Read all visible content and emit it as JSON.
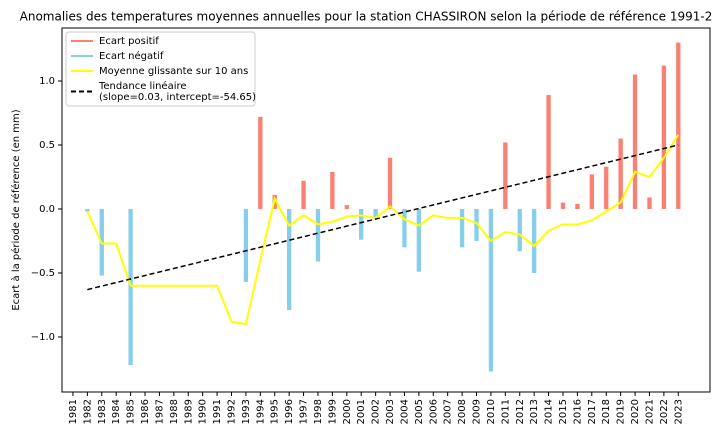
{
  "chart_data": {
    "type": "bar",
    "title": "Anomalies des temperatures moyennes annuelles pour la station CHASSIRON selon la période de référence 1991-2",
    "ylabel": "Ecart à la période de référence (en mm)",
    "x": [
      1982,
      1983,
      1984,
      1985,
      1986,
      1987,
      1988,
      1989,
      1990,
      1991,
      1992,
      1993,
      1994,
      1995,
      1996,
      1997,
      1998,
      1999,
      2000,
      2001,
      2002,
      2003,
      2004,
      2005,
      2006,
      2007,
      2008,
      2009,
      2010,
      2011,
      2012,
      2013,
      2014,
      2015,
      2016,
      2017,
      2018,
      2019,
      2020,
      2021,
      2022,
      2023
    ],
    "series": [
      {
        "name": "Ecart positif",
        "type": "bar",
        "color": "#fa8072",
        "values": [
          null,
          null,
          null,
          null,
          null,
          null,
          null,
          null,
          null,
          null,
          null,
          null,
          0.72,
          0.11,
          null,
          0.22,
          null,
          0.29,
          0.03,
          null,
          null,
          0.4,
          null,
          null,
          null,
          null,
          null,
          null,
          null,
          0.52,
          null,
          null,
          0.89,
          0.05,
          0.04,
          0.27,
          0.33,
          0.55,
          1.05,
          0.09,
          1.12,
          1.3
        ]
      },
      {
        "name": "Ecart négatif",
        "type": "bar",
        "color": "#87ceeb",
        "values": [
          -0.02,
          -0.52,
          null,
          -1.22,
          null,
          null,
          null,
          null,
          null,
          null,
          null,
          -0.57,
          null,
          null,
          -0.79,
          null,
          -0.41,
          null,
          null,
          -0.24,
          -0.07,
          null,
          -0.3,
          -0.49,
          null,
          null,
          -0.3,
          -0.25,
          -1.27,
          null,
          -0.33,
          -0.5,
          null,
          null,
          null,
          null,
          null,
          null,
          null,
          null,
          null,
          null
        ]
      },
      {
        "name": "Moyenne glissante sur 10 ans",
        "type": "line",
        "color": "#ffff00",
        "values": [
          -0.02,
          -0.27,
          -0.27,
          -0.6,
          -0.6,
          -0.6,
          -0.6,
          -0.6,
          -0.6,
          -0.6,
          -0.88,
          -0.9,
          -0.4,
          0.08,
          -0.13,
          -0.05,
          -0.12,
          -0.1,
          -0.06,
          -0.05,
          -0.07,
          0.02,
          -0.08,
          -0.13,
          -0.05,
          -0.07,
          -0.07,
          -0.11,
          -0.25,
          -0.18,
          -0.2,
          -0.29,
          -0.17,
          -0.12,
          -0.12,
          -0.09,
          -0.02,
          0.05,
          0.29,
          0.25,
          0.4,
          0.58
        ]
      },
      {
        "name": [
          "Tendance linéaire",
          "(slope=0.03, intercept=-54.65)"
        ],
        "type": "line",
        "color": "#000000",
        "dashed": true,
        "x": [
          1982,
          2023
        ],
        "values": [
          -0.63,
          0.5
        ]
      }
    ],
    "xlim": [
      1980.24,
      2025.2
    ],
    "xticks": [
      1981,
      1982,
      1983,
      1984,
      1985,
      1986,
      1987,
      1988,
      1989,
      1990,
      1991,
      1992,
      1993,
      1994,
      1995,
      1996,
      1997,
      1998,
      1999,
      2000,
      2001,
      2002,
      2003,
      2004,
      2005,
      2006,
      2007,
      2008,
      2009,
      2010,
      2011,
      2012,
      2013,
      2014,
      2015,
      2016,
      2017,
      2018,
      2019,
      2020,
      2021,
      2022,
      2023
    ],
    "ylim": [
      -1.43,
      1.414
    ],
    "yticks": [
      {
        "value": -1.0,
        "label": "−1.0"
      },
      {
        "value": -0.5,
        "label": "−0.5"
      },
      {
        "value": 0.0,
        "label": "0.0"
      },
      {
        "value": 0.5,
        "label": "0.5"
      },
      {
        "value": 1.0,
        "label": "1.0"
      }
    ],
    "legend": "upper left"
  }
}
